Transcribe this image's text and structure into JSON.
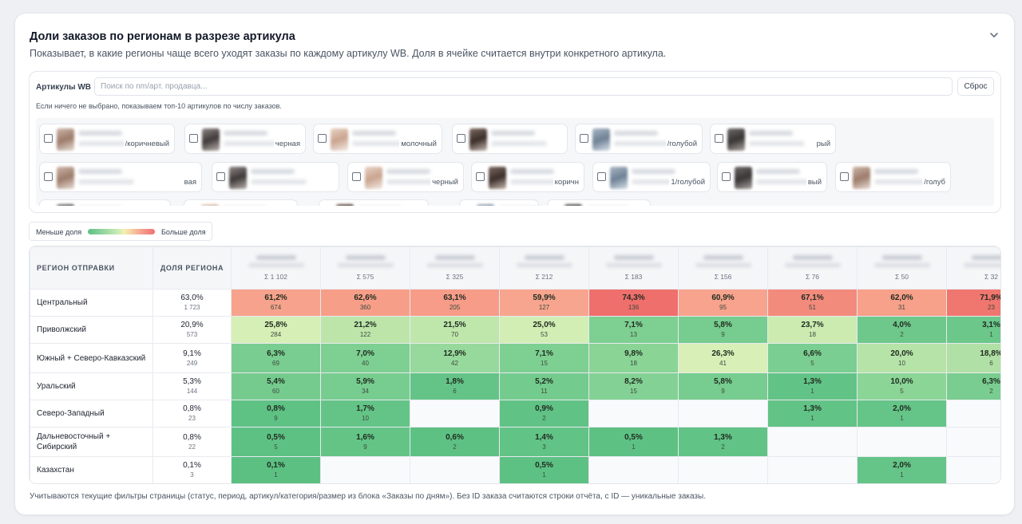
{
  "header": {
    "title": "Доли заказов по регионам в разрезе артикула",
    "subtitle": "Показывает, в какие регионы чаще всего уходят заказы по каждому артикулу WB. Доля в ячейке считается внутри конкретного артикула.",
    "collapse_icon": "chevron-down-icon"
  },
  "filter": {
    "label": "Артикулы WB",
    "search_placeholder": "Поиск по nm/арт. продавца...",
    "search_value": "",
    "reset_label": "Сброс",
    "hint": "Если ничего не выбрано, показываем топ-10 артикулов по числу заказов.",
    "chips": [
      {
        "color": "/коричневый"
      },
      {
        "color": "черная"
      },
      {
        "color": "молочный"
      },
      {
        "color": ""
      },
      {
        "color": "/голубой"
      },
      {
        "color": "рый"
      },
      {
        "color": "вая"
      },
      {
        "color": ""
      },
      {
        "color": "черный"
      },
      {
        "color": "коричн"
      },
      {
        "color": "1/голубой"
      },
      {
        "color": "вый"
      },
      {
        "color": "/голуб"
      },
      {
        "color": ""
      },
      {
        "color": ""
      },
      {
        "color": ""
      },
      {
        "color": ""
      },
      {
        "color": ""
      }
    ]
  },
  "legend": {
    "less_label": "Меньше доля",
    "more_label": "Больше доля"
  },
  "table": {
    "headers": {
      "region": "РЕГИОН ОТПРАВКИ",
      "share": "ДОЛЯ РЕГИОНА"
    },
    "articles": [
      {
        "sum": "Σ 1 102"
      },
      {
        "sum": "Σ 575"
      },
      {
        "sum": "Σ 325"
      },
      {
        "sum": "Σ 212"
      },
      {
        "sum": "Σ 183"
      },
      {
        "sum": "Σ 156"
      },
      {
        "sum": "Σ 76"
      },
      {
        "sum": "Σ 50"
      },
      {
        "sum": "Σ 32"
      }
    ],
    "rows": [
      {
        "region": "Центральный",
        "share": "63,0%",
        "count": "1 723",
        "tall": false,
        "cells": [
          {
            "pct": "61,2%",
            "cnt": "674",
            "color": "#f7a28c"
          },
          {
            "pct": "62,6%",
            "cnt": "360",
            "color": "#f79e89"
          },
          {
            "pct": "63,1%",
            "cnt": "205",
            "color": "#f69c88"
          },
          {
            "pct": "59,9%",
            "cnt": "127",
            "color": "#f7a58e"
          },
          {
            "pct": "74,3%",
            "cnt": "136",
            "color": "#ef6f6c"
          },
          {
            "pct": "60,9%",
            "cnt": "95",
            "color": "#f7a38d"
          },
          {
            "pct": "67,1%",
            "cnt": "51",
            "color": "#f38b7d"
          },
          {
            "pct": "62,0%",
            "cnt": "31",
            "color": "#f7a08a"
          },
          {
            "pct": "71,9%",
            "cnt": "23",
            "color": "#f07670"
          }
        ]
      },
      {
        "region": "Приволжский",
        "share": "20,9%",
        "count": "573",
        "tall": false,
        "cells": [
          {
            "pct": "25,8%",
            "cnt": "284",
            "color": "#d6efb6"
          },
          {
            "pct": "21,2%",
            "cnt": "122",
            "color": "#bde5aa"
          },
          {
            "pct": "21,5%",
            "cnt": "70",
            "color": "#bfe6ab"
          },
          {
            "pct": "25,0%",
            "cnt": "53",
            "color": "#d3eeb4"
          },
          {
            "pct": "7,1%",
            "cnt": "13",
            "color": "#7ecf92"
          },
          {
            "pct": "5,8%",
            "cnt": "9",
            "color": "#77cc8f"
          },
          {
            "pct": "23,7%",
            "cnt": "18",
            "color": "#cbebb1"
          },
          {
            "pct": "4,0%",
            "cnt": "2",
            "color": "#6ec88b"
          },
          {
            "pct": "3,1%",
            "cnt": "1",
            "color": "#6bc78a"
          }
        ]
      },
      {
        "region": "Южный + Северо-Кавказский",
        "share": "9,1%",
        "count": "249",
        "tall": true,
        "cells": [
          {
            "pct": "6,3%",
            "cnt": "69",
            "color": "#79cd90"
          },
          {
            "pct": "7,0%",
            "cnt": "40",
            "color": "#7dcf92"
          },
          {
            "pct": "12,9%",
            "cnt": "42",
            "color": "#97d99c"
          },
          {
            "pct": "7,1%",
            "cnt": "15",
            "color": "#7ecf92"
          },
          {
            "pct": "9,8%",
            "cnt": "18",
            "color": "#8ad496"
          },
          {
            "pct": "26,3%",
            "cnt": "41",
            "color": "#d8f0b7"
          },
          {
            "pct": "6,6%",
            "cnt": "5",
            "color": "#7ace91"
          },
          {
            "pct": "20,0%",
            "cnt": "10",
            "color": "#b6e3a8"
          },
          {
            "pct": "18,8%",
            "cnt": "6",
            "color": "#b0e0a5"
          }
        ]
      },
      {
        "region": "Уральский",
        "share": "5,3%",
        "count": "144",
        "tall": false,
        "cells": [
          {
            "pct": "5,4%",
            "cnt": "60",
            "color": "#75cb8e"
          },
          {
            "pct": "5,9%",
            "cnt": "34",
            "color": "#77cc8f"
          },
          {
            "pct": "1,8%",
            "cnt": "6",
            "color": "#64c487"
          },
          {
            "pct": "5,2%",
            "cnt": "11",
            "color": "#74cb8e"
          },
          {
            "pct": "8,2%",
            "cnt": "15",
            "color": "#83d194"
          },
          {
            "pct": "5,8%",
            "cnt": "9",
            "color": "#77cc8f"
          },
          {
            "pct": "1,3%",
            "cnt": "1",
            "color": "#62c386"
          },
          {
            "pct": "10,0%",
            "cnt": "5",
            "color": "#8bd597"
          },
          {
            "pct": "6,3%",
            "cnt": "2",
            "color": "#79cd90"
          }
        ]
      },
      {
        "region": "Северо-Западный",
        "share": "0,8%",
        "count": "23",
        "tall": false,
        "cells": [
          {
            "pct": "0,8%",
            "cnt": "9",
            "color": "#5fc285"
          },
          {
            "pct": "1,7%",
            "cnt": "10",
            "color": "#64c487"
          },
          {
            "pct": "",
            "cnt": "",
            "color": ""
          },
          {
            "pct": "0,9%",
            "cnt": "2",
            "color": "#60c285"
          },
          {
            "pct": "",
            "cnt": "",
            "color": ""
          },
          {
            "pct": "",
            "cnt": "",
            "color": ""
          },
          {
            "pct": "1,3%",
            "cnt": "1",
            "color": "#62c386"
          },
          {
            "pct": "2,0%",
            "cnt": "1",
            "color": "#65c487"
          },
          {
            "pct": "",
            "cnt": "",
            "color": ""
          }
        ]
      },
      {
        "region": "Дальневосточный + Сибирский",
        "share": "0,8%",
        "count": "22",
        "tall": true,
        "cells": [
          {
            "pct": "0,5%",
            "cnt": "5",
            "color": "#5ec184"
          },
          {
            "pct": "1,6%",
            "cnt": "9",
            "color": "#63c486"
          },
          {
            "pct": "0,6%",
            "cnt": "2",
            "color": "#5ec184"
          },
          {
            "pct": "1,4%",
            "cnt": "3",
            "color": "#62c386"
          },
          {
            "pct": "0,5%",
            "cnt": "1",
            "color": "#5ec184"
          },
          {
            "pct": "1,3%",
            "cnt": "2",
            "color": "#62c386"
          },
          {
            "pct": "",
            "cnt": "",
            "color": ""
          },
          {
            "pct": "",
            "cnt": "",
            "color": ""
          },
          {
            "pct": "",
            "cnt": "",
            "color": ""
          }
        ]
      },
      {
        "region": "Казахстан",
        "share": "0,1%",
        "count": "3",
        "tall": false,
        "cells": [
          {
            "pct": "0,1%",
            "cnt": "1",
            "color": "#5cc083"
          },
          {
            "pct": "",
            "cnt": "",
            "color": ""
          },
          {
            "pct": "",
            "cnt": "",
            "color": ""
          },
          {
            "pct": "0,5%",
            "cnt": "1",
            "color": "#5ec184"
          },
          {
            "pct": "",
            "cnt": "",
            "color": ""
          },
          {
            "pct": "",
            "cnt": "",
            "color": ""
          },
          {
            "pct": "",
            "cnt": "",
            "color": ""
          },
          {
            "pct": "2,0%",
            "cnt": "1",
            "color": "#65c487"
          },
          {
            "pct": "",
            "cnt": "",
            "color": ""
          }
        ]
      }
    ]
  },
  "footer": {
    "note": "Учитываются текущие фильтры страницы (статус, период, артикул/категория/размер из блока «Заказы по дням»). Без ID заказа считаются строки отчёта, с ID — уникальные заказы."
  }
}
